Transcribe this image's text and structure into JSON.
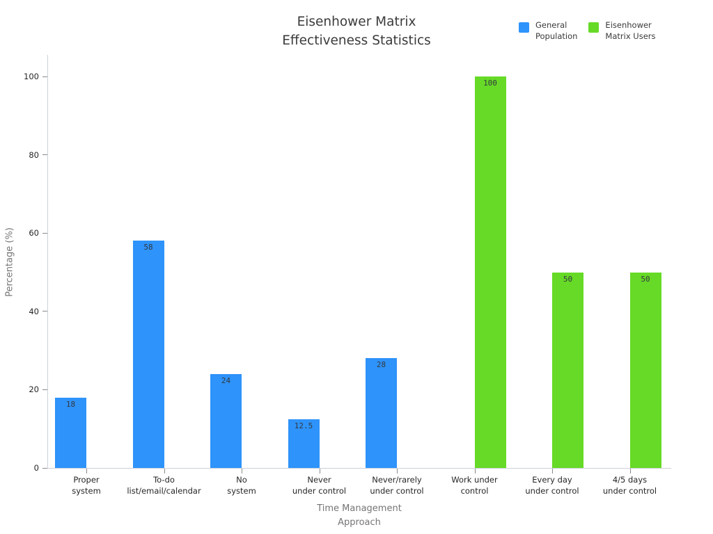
{
  "chart_data": {
    "type": "bar",
    "title": "Eisenhower Matrix\nEffectiveness Statistics",
    "xlabel": "Time Management\nApproach",
    "ylabel": "Percentage (%)",
    "categories": [
      "Proper\nsystem",
      "To-do\nlist/email/calendar",
      "No\nsystem",
      "Never\nunder control",
      "Never/rarely\nunder control",
      "Work under\ncontrol",
      "Every day\nunder control",
      "4/5 days\nunder control"
    ],
    "series": [
      {
        "name": "General\nPopulation",
        "color": "#2E93FA",
        "values": [
          18,
          58,
          24,
          12.5,
          28,
          null,
          null,
          null
        ]
      },
      {
        "name": "Eisenhower\nMatrix Users",
        "color": "#66DA26",
        "values": [
          null,
          null,
          null,
          null,
          null,
          100,
          50,
          50
        ]
      }
    ],
    "bar_value_labels": [
      18,
      58,
      24,
      12.5,
      28,
      100,
      50,
      50
    ],
    "yticks": [
      0,
      20,
      40,
      60,
      80,
      100
    ],
    "ylim": [
      0,
      105.5
    ],
    "grid": false,
    "legend_position": "top-right"
  }
}
